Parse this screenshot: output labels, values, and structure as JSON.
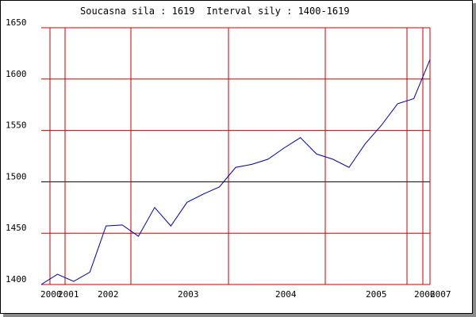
{
  "header": {
    "current_label": "Soucasna sila",
    "current_value": "1619",
    "interval_label": "Interval sily",
    "interval_value": "1400-1619"
  },
  "chart_data": {
    "type": "line",
    "title": "",
    "xlabel": "",
    "ylabel": "",
    "ylim": [
      1400,
      1650
    ],
    "y_ticks": [
      1400,
      1450,
      1500,
      1550,
      1600,
      1650
    ],
    "reference_line": 1500,
    "x_tick_labels": [
      "2000",
      "2001",
      "2002",
      "2003",
      "2004",
      "2005",
      "2006",
      "2007"
    ],
    "values": [
      1400,
      1410,
      1403,
      1412,
      1457,
      1458,
      1447,
      1475,
      1457,
      1480,
      1488,
      1495,
      1514,
      1517,
      1522,
      1533,
      1543,
      1527,
      1522,
      1514,
      1537,
      1555,
      1576,
      1581,
      1619
    ],
    "grid": true,
    "colors": {
      "line": "#0000aa",
      "grid": "#cc0000",
      "reference": "#000000"
    }
  }
}
